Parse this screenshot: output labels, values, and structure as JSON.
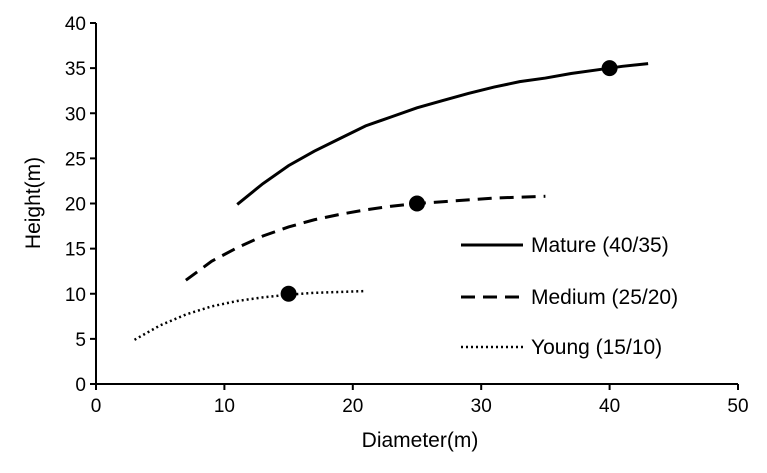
{
  "chart_data": {
    "type": "line",
    "xlabel": "Diameter(m)",
    "ylabel": "Height(m)",
    "xlim": [
      0,
      50
    ],
    "ylim": [
      0,
      40
    ],
    "xticks": [
      "0",
      "10",
      "20",
      "30",
      "40",
      "50"
    ],
    "yticks": [
      "0",
      "5",
      "10",
      "15",
      "20",
      "25",
      "30",
      "35",
      "40"
    ],
    "grid": false,
    "legend_position": "center-right",
    "series": [
      {
        "name": "Mature (40/35)",
        "style": "solid",
        "color": "#000000",
        "x": [
          11,
          13,
          15,
          17,
          19,
          21,
          23,
          25,
          27,
          29,
          31,
          33,
          35,
          37,
          39,
          41,
          43
        ],
        "y": [
          19.9,
          22.2,
          24.2,
          25.8,
          27.2,
          28.6,
          29.6,
          30.6,
          31.4,
          32.2,
          32.9,
          33.5,
          33.9,
          34.4,
          34.8,
          35.2,
          35.5
        ],
        "marker": {
          "x": 40,
          "y": 35
        }
      },
      {
        "name": "Medium (25/20)",
        "style": "dashed",
        "color": "#000000",
        "x": [
          7,
          9,
          11,
          13,
          15,
          17,
          19,
          21,
          23,
          25,
          27,
          29,
          31,
          33,
          35
        ],
        "y": [
          11.5,
          13.6,
          15.1,
          16.4,
          17.4,
          18.2,
          18.8,
          19.3,
          19.7,
          20.0,
          20.2,
          20.4,
          20.6,
          20.7,
          20.8
        ],
        "marker": {
          "x": 25,
          "y": 20
        }
      },
      {
        "name": "Young (15/10)",
        "style": "dotted",
        "color": "#000000",
        "x": [
          3,
          5,
          7,
          9,
          11,
          13,
          15,
          17,
          19,
          21
        ],
        "y": [
          4.9,
          6.5,
          7.7,
          8.6,
          9.2,
          9.6,
          9.9,
          10.1,
          10.2,
          10.3
        ],
        "marker": {
          "x": 15,
          "y": 10
        }
      }
    ]
  }
}
